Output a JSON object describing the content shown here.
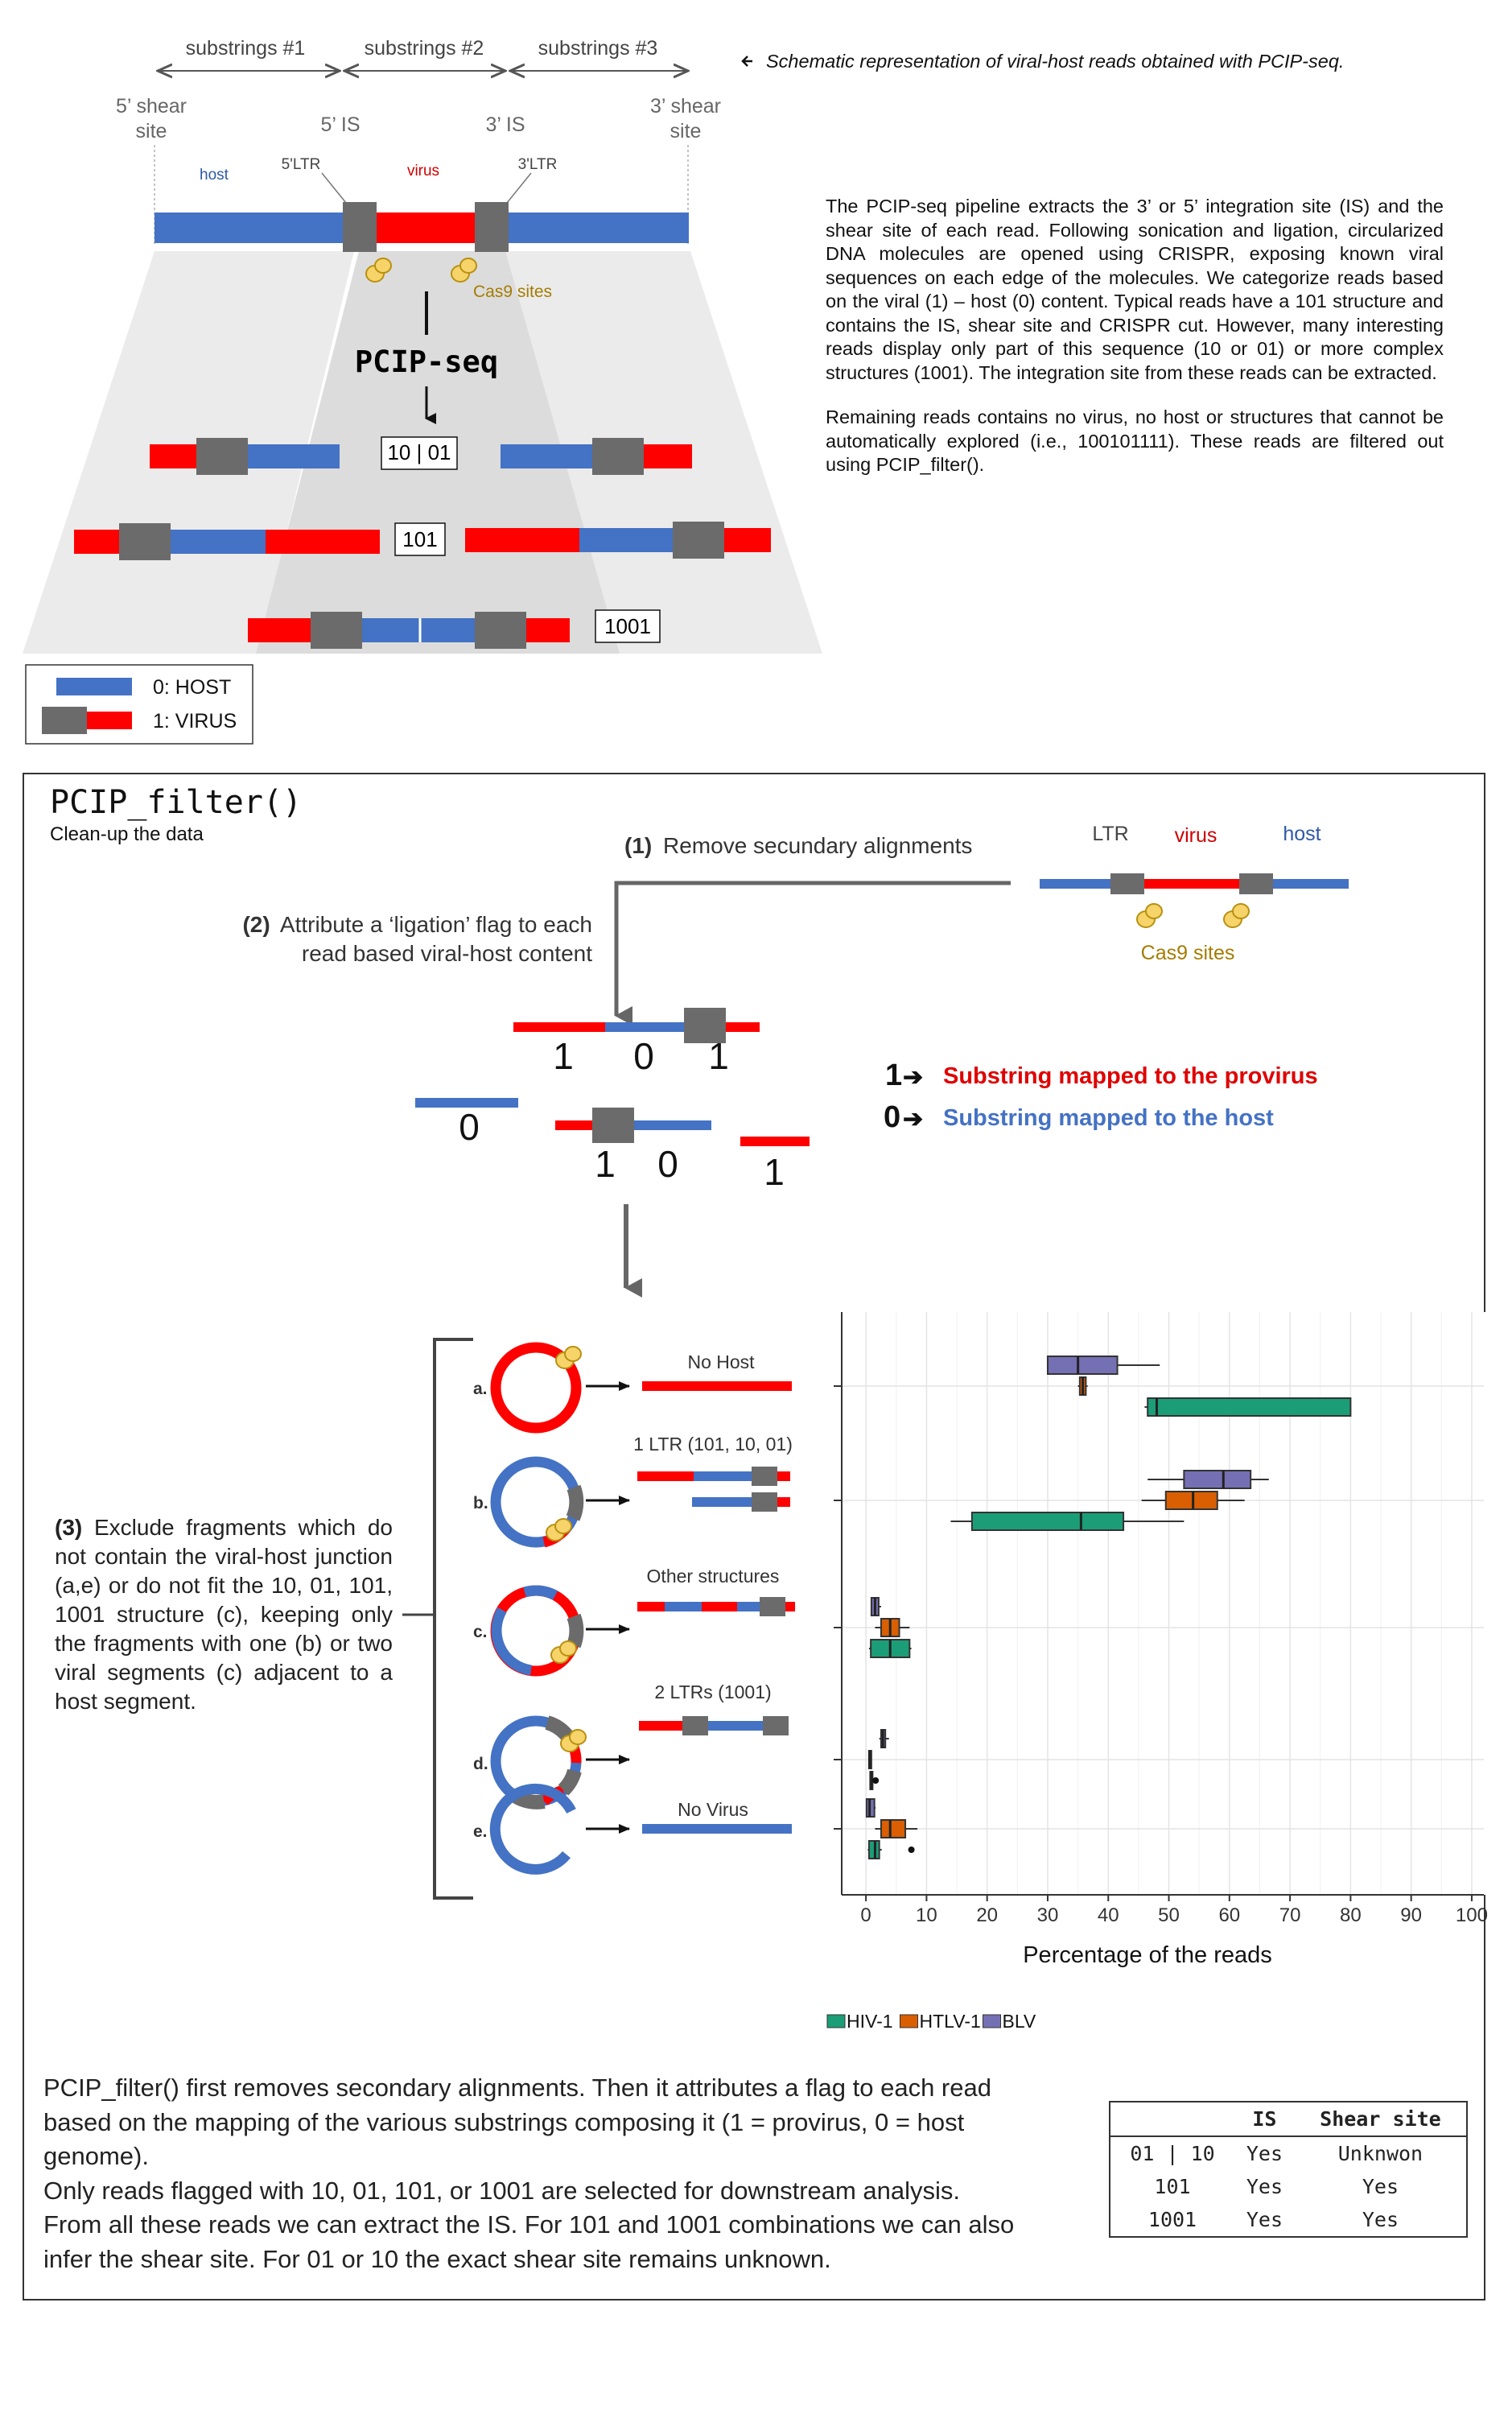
{
  "top": {
    "substring_labels": [
      "substrings #1",
      "substrings #2",
      "substrings #3"
    ],
    "caption": "Schematic representation of viral-host reads obtained with PCIP-seq.",
    "shear_left": [
      "5’ shear",
      "site"
    ],
    "shear_right": [
      "3’ shear",
      "site"
    ],
    "is_left": "5’ IS",
    "is_right": "3’ IS",
    "host": "host",
    "ltr5": "5'LTR",
    "virus": "virus",
    "ltr3": "3'LTR",
    "cas9": "Cas9 sites",
    "pcip": "PCIP-seq",
    "box_1001": "10 | 01",
    "box_101": "101",
    "box_1001b": "1001",
    "legend": {
      "host": "0: HOST",
      "virus": "1: VIRUS"
    }
  },
  "description": {
    "paragraph1": "The PCIP-seq pipeline extracts the 3’ or 5’ integration site (IS) and the shear site of each read. Following sonication and ligation, circularized DNA molecules are opened using CRISPR, exposing known viral sequences on each edge of the molecules. We categorize reads based on the viral (1) – host (0) content. Typical reads have a 101 structure and contains the IS, shear site and CRISPR cut. However, many interesting reads display only part of this sequence (10 or 01) or more complex structures (1001). The integration site from these reads can be extracted.",
    "paragraph2": "Remaining reads contains no virus, no host or structures that cannot be automatically explored (i.e., 100101111). These reads are filtered out using PCIP_filter()."
  },
  "filter": {
    "title": "PCIP_filter()",
    "subtitle": "Clean-up the data",
    "step1_num": "(1)",
    "step1": "Remove secundary alignments",
    "step2_num": "(2)",
    "step2_line1": "Attribute a ‘ligation’ flag to each",
    "step2_line2": "read based viral-host content",
    "ltr": "LTR",
    "virus": "virus",
    "host": "host",
    "cas9": "Cas9 sites",
    "digits_read": [
      "1",
      "0",
      "1"
    ],
    "digit_0": "0",
    "digits_10": [
      "1",
      "0"
    ],
    "digit_1": "1",
    "key1_num": "1",
    "key1": "Substring mapped to the provirus",
    "key0_num": "0",
    "key0": "Substring mapped to the host",
    "step3_num": "(3)",
    "step3": "Exclude fragments which do not contain the viral-host junction (a,e) or do not fit the 10, 01, 101, 1001 structure (c), keeping only the fragments with one (b) or two viral segments (c) adjacent to a host segment.",
    "categories": [
      {
        "letter": "a.",
        "label": "No Host"
      },
      {
        "letter": "b.",
        "label": "1 LTR (101, 10, 01)"
      },
      {
        "letter": "c.",
        "label": "Other structures"
      },
      {
        "letter": "d.",
        "label": "2 LTRs (1001)"
      },
      {
        "letter": "e.",
        "label": "No Virus"
      }
    ]
  },
  "chart_data": {
    "type": "boxplot",
    "xlabel": "Percentage of the reads",
    "ylabel": "",
    "xlim": [
      -4,
      102
    ],
    "xticks": [
      0,
      10,
      20,
      30,
      40,
      50,
      60,
      70,
      80,
      90,
      100
    ],
    "grid": true,
    "legend_position": "bottom",
    "series": [
      {
        "name": "HIV-1",
        "color": "#1B9E77"
      },
      {
        "name": "HTLV-1",
        "color": "#D95F02"
      },
      {
        "name": "BLV",
        "color": "#7570B3"
      }
    ],
    "categories": [
      "No Host",
      "1 LTR (101, 10, 01)",
      "Other structures",
      "2 LTRs (1001)",
      "No Virus"
    ],
    "boxes": [
      {
        "category": "No Host",
        "series": "BLV",
        "whisker_low": 30,
        "q1": 30,
        "median": 35,
        "q3": 41.5,
        "whisker_high": 48.5
      },
      {
        "category": "No Host",
        "series": "HTLV-1",
        "whisker_low": 35,
        "q1": 35.3,
        "median": 35.8,
        "q3": 36.3,
        "whisker_high": 36.6
      },
      {
        "category": "No Host",
        "series": "HIV-1",
        "whisker_low": 46,
        "q1": 46.5,
        "median": 48,
        "q3": 80,
        "whisker_high": 80
      },
      {
        "category": "1 LTR (101, 10, 01)",
        "series": "BLV",
        "whisker_low": 46.5,
        "q1": 52.5,
        "median": 59,
        "q3": 63.5,
        "whisker_high": 66.5
      },
      {
        "category": "1 LTR (101, 10, 01)",
        "series": "HTLV-1",
        "whisker_low": 45.5,
        "q1": 49.5,
        "median": 54,
        "q3": 58,
        "whisker_high": 62.5
      },
      {
        "category": "1 LTR (101, 10, 01)",
        "series": "HIV-1",
        "whisker_low": 14,
        "q1": 17.5,
        "median": 35.5,
        "q3": 42.5,
        "whisker_high": 52.5
      },
      {
        "category": "Other structures",
        "series": "BLV",
        "whisker_low": 0.8,
        "q1": 0.9,
        "median": 1.5,
        "q3": 2.1,
        "whisker_high": 2.5
      },
      {
        "category": "Other structures",
        "series": "HTLV-1",
        "whisker_low": 1.5,
        "q1": 2.5,
        "median": 4,
        "q3": 5.5,
        "whisker_high": 7.2
      },
      {
        "category": "Other structures",
        "series": "HIV-1",
        "whisker_low": 0.5,
        "q1": 0.8,
        "median": 4,
        "q3": 7.2,
        "whisker_high": 7.5
      },
      {
        "category": "2 LTRs (1001)",
        "series": "BLV",
        "whisker_low": 2.2,
        "q1": 2.5,
        "median": 2.8,
        "q3": 3.2,
        "whisker_high": 3.8
      },
      {
        "category": "2 LTRs (1001)",
        "series": "HTLV-1",
        "whisker_low": 0.4,
        "q1": 0.5,
        "median": 0.6,
        "q3": 0.7,
        "whisker_high": 0.8
      },
      {
        "category": "2 LTRs (1001)",
        "series": "HIV-1",
        "whisker_low": 0.6,
        "q1": 0.7,
        "median": 0.9,
        "q3": 1.0,
        "whisker_high": 1.1,
        "outliers": [
          1.6
        ]
      },
      {
        "category": "No Virus",
        "series": "BLV",
        "whisker_low": 0,
        "q1": 0.1,
        "median": 0.6,
        "q3": 1.4,
        "whisker_high": 1.6
      },
      {
        "category": "No Virus",
        "series": "HTLV-1",
        "whisker_low": 1.5,
        "q1": 2.5,
        "median": 4,
        "q3": 6.5,
        "whisker_high": 8.5
      },
      {
        "category": "No Virus",
        "series": "HIV-1",
        "whisker_low": 0.3,
        "q1": 0.5,
        "median": 1.5,
        "q3": 2.2,
        "whisker_high": 2.6,
        "outliers": [
          7.5
        ]
      }
    ]
  },
  "bottom": {
    "lines": [
      "PCIP_filter() first removes secondary alignments. Then it attributes a flag to each read based on the mapping of the various substrings composing it (1 = provirus, 0 = host genome).",
      "Only reads flagged with 10, 01, 101, or 1001 are selected for downstream analysis.",
      "From all these reads we can extract the IS. For 101 and 1001 combinations we can also infer the shear site. For 01 or 10 the exact shear site remains unknown."
    ],
    "table": {
      "headers": [
        "",
        "IS",
        "Shear site"
      ],
      "rows": [
        [
          "01 | 10",
          "Yes",
          "Unknwon"
        ],
        [
          "101",
          "Yes",
          "Yes"
        ],
        [
          "1001",
          "Yes",
          "Yes"
        ]
      ]
    }
  }
}
